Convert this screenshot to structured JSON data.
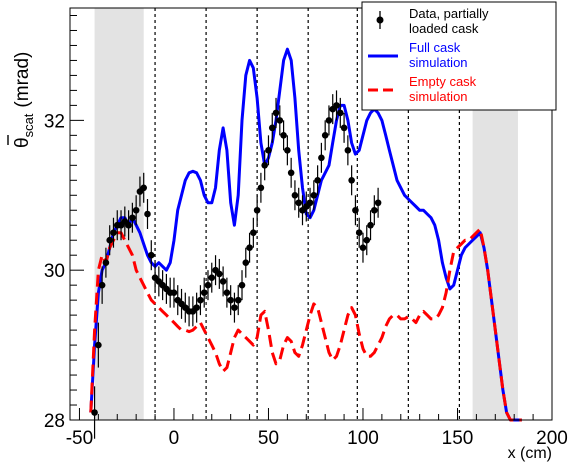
{
  "chart_data": {
    "type": "line",
    "xlabel": "x (cm)",
    "ylabel": {
      "main": "θ",
      "sub": "scat",
      "unit": "(mrad)"
    },
    "xlim": [
      -55,
      200
    ],
    "ylim": [
      28,
      33.5
    ],
    "xticks": [
      -50,
      0,
      50,
      100,
      150,
      200
    ],
    "yticks": [
      28,
      30,
      32
    ],
    "grid": false,
    "legend_position": "top-right",
    "shaded_regions": [
      [
        -42,
        -16
      ],
      [
        158,
        182
      ]
    ],
    "vertical_dashed_lines": [
      -10,
      17,
      44,
      71,
      97,
      124,
      151
    ],
    "series": [
      {
        "name": "Full cask simulation",
        "style": "solid",
        "color": "#0000ff",
        "x": [
          -44,
          -42,
          -40,
          -38,
          -36,
          -34,
          -32,
          -30,
          -28,
          -26,
          -24,
          -22,
          -20,
          -18,
          -16,
          -14,
          -12,
          -10,
          -8,
          -6,
          -4,
          -2,
          0,
          2,
          4,
          6,
          8,
          10,
          12,
          14,
          16,
          18,
          20,
          22,
          24,
          26,
          28,
          30,
          32,
          34,
          36,
          38,
          40,
          42,
          44,
          46,
          48,
          50,
          52,
          54,
          56,
          58,
          60,
          62,
          64,
          66,
          68,
          70,
          72,
          74,
          76,
          78,
          80,
          82,
          84,
          86,
          88,
          90,
          92,
          94,
          96,
          98,
          100,
          102,
          104,
          106,
          108,
          110,
          112,
          114,
          116,
          118,
          120,
          122,
          124,
          126,
          128,
          130,
          132,
          134,
          136,
          138,
          140,
          142,
          144,
          146,
          148,
          150,
          152,
          154,
          156,
          158,
          160,
          162,
          164,
          166,
          168,
          170,
          172,
          174,
          176,
          178,
          180,
          182,
          184
        ],
        "y": [
          28.1,
          29.0,
          29.7,
          30.0,
          30.1,
          30.3,
          30.5,
          30.6,
          30.7,
          30.7,
          30.6,
          30.7,
          30.6,
          30.5,
          30.35,
          30.2,
          30.1,
          30.05,
          30.1,
          30.05,
          30.0,
          30.1,
          30.4,
          30.8,
          31.0,
          31.2,
          31.3,
          31.32,
          31.3,
          31.2,
          31.0,
          30.9,
          30.9,
          31.1,
          31.6,
          31.9,
          31.6,
          30.9,
          30.6,
          31.0,
          32.0,
          32.6,
          32.8,
          32.7,
          32.3,
          31.7,
          31.4,
          31.5,
          31.7,
          32.0,
          32.4,
          32.8,
          32.95,
          32.8,
          32.3,
          31.6,
          31.1,
          30.75,
          30.7,
          30.8,
          31.0,
          31.2,
          31.3,
          31.4,
          31.7,
          32.0,
          32.2,
          32.2,
          32.0,
          31.7,
          31.55,
          31.6,
          31.8,
          32.0,
          32.1,
          32.15,
          32.1,
          32.0,
          31.8,
          31.6,
          31.4,
          31.2,
          31.1,
          31.0,
          30.95,
          30.9,
          30.85,
          30.8,
          30.8,
          30.75,
          30.7,
          30.6,
          30.4,
          30.1,
          29.9,
          29.75,
          29.8,
          30.0,
          30.2,
          30.3,
          30.35,
          30.4,
          30.45,
          30.5,
          30.3,
          30.0,
          29.6,
          29.2,
          28.8,
          28.4,
          28.1,
          28.0,
          28.0,
          28.0,
          28.0
        ],
        "values_note": ""
      },
      {
        "name": "Empty cask simulation",
        "style": "dashed",
        "color": "#ff0000",
        "x": [
          -44,
          -42,
          -40,
          -38,
          -36,
          -34,
          -32,
          -30,
          -28,
          -26,
          -24,
          -22,
          -20,
          -18,
          -16,
          -14,
          -12,
          -10,
          -8,
          -6,
          -4,
          -2,
          0,
          2,
          4,
          6,
          8,
          10,
          12,
          14,
          16,
          18,
          20,
          22,
          24,
          26,
          28,
          30,
          32,
          34,
          36,
          38,
          40,
          42,
          44,
          46,
          48,
          50,
          52,
          54,
          56,
          58,
          60,
          62,
          64,
          66,
          68,
          70,
          72,
          74,
          76,
          78,
          80,
          82,
          84,
          86,
          88,
          90,
          92,
          94,
          96,
          98,
          100,
          102,
          104,
          106,
          108,
          110,
          112,
          114,
          116,
          118,
          120,
          122,
          124,
          126,
          128,
          130,
          132,
          134,
          136,
          138,
          140,
          142,
          144,
          146,
          148,
          150,
          152,
          154,
          156,
          158,
          160,
          162,
          164,
          166,
          168,
          170,
          172,
          174,
          176,
          178,
          180,
          182,
          184
        ],
        "y": [
          28.1,
          29.2,
          30.0,
          30.2,
          30.1,
          30.3,
          30.4,
          30.5,
          30.5,
          30.4,
          30.3,
          30.2,
          30.0,
          29.9,
          29.8,
          29.7,
          29.6,
          29.55,
          29.5,
          29.45,
          29.4,
          29.35,
          29.3,
          29.25,
          29.2,
          29.2,
          29.18,
          29.2,
          29.25,
          29.3,
          29.2,
          29.1,
          29.0,
          28.9,
          28.75,
          28.65,
          28.7,
          28.9,
          29.1,
          29.2,
          29.15,
          29.1,
          29.05,
          29.0,
          29.1,
          29.4,
          29.45,
          29.2,
          28.9,
          28.75,
          28.8,
          29.0,
          29.1,
          29.05,
          28.9,
          28.85,
          29.0,
          29.2,
          29.4,
          29.55,
          29.5,
          29.3,
          29.1,
          28.9,
          28.8,
          28.85,
          29.0,
          29.2,
          29.4,
          29.5,
          29.4,
          29.15,
          28.95,
          28.85,
          28.85,
          28.9,
          29.0,
          29.1,
          29.25,
          29.35,
          29.4,
          29.4,
          29.35,
          29.35,
          29.38,
          29.35,
          29.3,
          29.4,
          29.45,
          29.4,
          29.35,
          29.35,
          29.4,
          29.5,
          29.7,
          30.0,
          30.25,
          30.3,
          30.35,
          30.4,
          30.4,
          30.45,
          30.5,
          30.55,
          30.3,
          30.0,
          29.6,
          29.2,
          28.8,
          28.4,
          28.1,
          28.0,
          28.0,
          28.0,
          28.0
        ]
      },
      {
        "name": "Data, partially loaded cask",
        "style": "points",
        "color": "#000000",
        "x": [
          -42,
          -40,
          -38,
          -36,
          -34,
          -32,
          -30,
          -28,
          -26,
          -24,
          -22,
          -20,
          -18,
          -16,
          -14,
          -12,
          -10,
          -8,
          -6,
          -4,
          -2,
          0,
          2,
          4,
          6,
          8,
          10,
          12,
          14,
          16,
          18,
          20,
          22,
          24,
          26,
          28,
          30,
          32,
          34,
          36,
          38,
          40,
          42,
          44,
          46,
          48,
          50,
          52,
          54,
          56,
          58,
          60,
          62,
          64,
          66,
          68,
          70,
          72,
          74,
          76,
          78,
          80,
          82,
          84,
          86,
          88,
          90,
          92,
          94,
          96,
          98,
          100,
          102,
          104,
          106,
          108
        ],
        "y": [
          28.1,
          29.0,
          29.8,
          30.1,
          30.4,
          30.5,
          30.6,
          30.6,
          30.65,
          30.6,
          30.7,
          30.8,
          31.05,
          31.1,
          30.75,
          30.2,
          29.9,
          29.85,
          29.8,
          29.75,
          29.7,
          29.7,
          29.6,
          29.55,
          29.5,
          29.45,
          29.45,
          29.5,
          29.6,
          29.7,
          29.8,
          29.9,
          30.0,
          29.95,
          29.85,
          29.7,
          29.6,
          29.5,
          29.6,
          29.8,
          30.1,
          30.3,
          30.5,
          30.8,
          31.1,
          31.4,
          31.6,
          31.9,
          32.1,
          32.0,
          31.8,
          31.6,
          31.3,
          31.0,
          30.9,
          30.8,
          30.85,
          30.9,
          31.0,
          31.2,
          31.5,
          31.8,
          32.0,
          32.15,
          32.2,
          32.1,
          31.9,
          31.6,
          31.2,
          30.8,
          30.5,
          30.3,
          30.4,
          30.6,
          30.8,
          30.9
        ],
        "err": [
          0.35,
          0.3,
          0.25,
          0.2,
          0.2,
          0.2,
          0.2,
          0.2,
          0.2,
          0.2,
          0.2,
          0.2,
          0.2,
          0.2,
          0.2,
          0.2,
          0.2,
          0.2,
          0.2,
          0.2,
          0.2,
          0.2,
          0.2,
          0.2,
          0.2,
          0.2,
          0.2,
          0.2,
          0.2,
          0.2,
          0.2,
          0.2,
          0.2,
          0.2,
          0.2,
          0.2,
          0.2,
          0.2,
          0.2,
          0.2,
          0.2,
          0.2,
          0.2,
          0.2,
          0.2,
          0.2,
          0.2,
          0.2,
          0.2,
          0.2,
          0.2,
          0.2,
          0.2,
          0.2,
          0.2,
          0.2,
          0.2,
          0.2,
          0.2,
          0.2,
          0.2,
          0.2,
          0.2,
          0.2,
          0.2,
          0.2,
          0.2,
          0.2,
          0.2,
          0.2,
          0.2,
          0.2,
          0.2,
          0.2,
          0.2,
          0.2
        ]
      }
    ],
    "legend": [
      {
        "label": "Data, partially loaded cask",
        "lines": [
          "Data, partially",
          "loaded cask"
        ],
        "color": "#000000",
        "style": "points"
      },
      {
        "label": "Full cask simulation",
        "lines": [
          "Full cask",
          "simulation"
        ],
        "color": "#0000ff",
        "style": "solid"
      },
      {
        "label": "Empty cask simulation",
        "lines": [
          "Empty cask",
          "simulation"
        ],
        "color": "#ff0000",
        "style": "dashed"
      }
    ]
  }
}
